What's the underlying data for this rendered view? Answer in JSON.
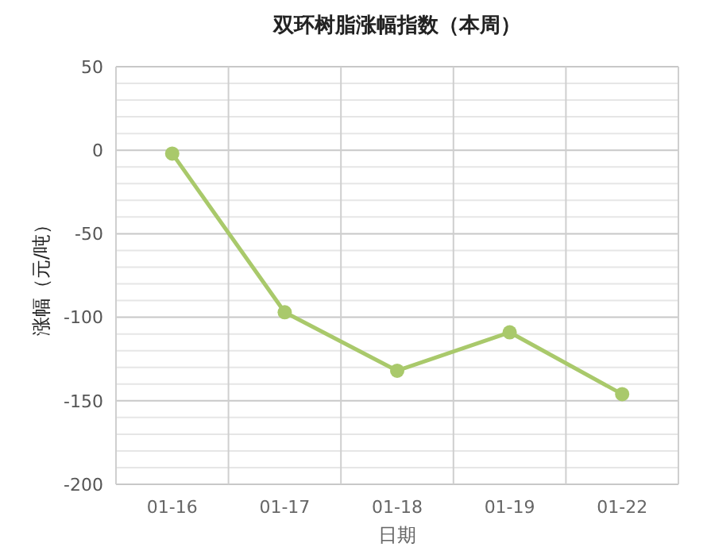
{
  "chart_data": {
    "type": "line",
    "title": "双环树脂涨幅指数（本周）",
    "xlabel": "日期",
    "ylabel": "涨幅（元/吨）",
    "categories": [
      "01-16",
      "01-17",
      "01-18",
      "01-19",
      "01-22"
    ],
    "series": [
      {
        "color": "#a9c96b",
        "values": [
          -2,
          -97,
          -132,
          -109,
          -146
        ]
      }
    ],
    "ylim": [
      -200,
      50
    ],
    "yticks": [
      -200,
      {
        "value": -190,
        "label": null
      },
      {
        "value": -180,
        "label": null
      },
      {
        "value": -170,
        "label": null
      },
      {
        "value": -160,
        "label": null
      },
      -150,
      {
        "value": -140,
        "label": null
      },
      {
        "value": -130,
        "label": null
      },
      {
        "value": -120,
        "label": null
      },
      {
        "value": -110,
        "label": null
      },
      -100,
      {
        "value": -90,
        "label": null
      },
      {
        "value": -80,
        "label": null
      },
      {
        "value": -70,
        "label": null
      },
      {
        "value": -60,
        "label": null
      },
      -50,
      {
        "value": -40,
        "label": null
      },
      {
        "value": -30,
        "label": null
      },
      {
        "value": -20,
        "label": null
      },
      {
        "value": -10,
        "label": null
      },
      0,
      {
        "value": 10,
        "label": null
      },
      {
        "value": 20,
        "label": null
      },
      {
        "value": 30,
        "label": null
      },
      {
        "value": 40,
        "label": null
      },
      50
    ],
    "grid": true,
    "marker": "circle",
    "line_style": "solid"
  }
}
